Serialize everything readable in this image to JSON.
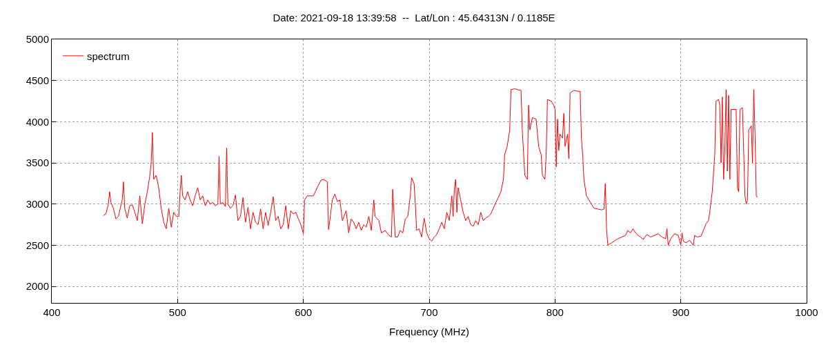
{
  "chart_data": {
    "type": "line",
    "title": "Date: 2021-09-18 13:39:58  --  Lat/Lon : 45.64313N / 0.1185E",
    "xlabel": "Frequency (MHz)",
    "xlim": [
      400,
      1000
    ],
    "xticks": [
      400,
      500,
      600,
      700,
      800,
      900,
      1000
    ],
    "ylim": [
      1800,
      5000
    ],
    "yticks": [
      2000,
      2500,
      3000,
      3500,
      4000,
      4500,
      5000
    ],
    "grid": true,
    "legend": "top left",
    "line_style": "solid",
    "marker": "none",
    "x": [
      441,
      443,
      445,
      446,
      447,
      449,
      451,
      453,
      456,
      457,
      458,
      460,
      462,
      464,
      466,
      468,
      470,
      472,
      474,
      476,
      478,
      479,
      480,
      481,
      483,
      485,
      487,
      489,
      491,
      493,
      495,
      497,
      499,
      501,
      502,
      503,
      504,
      506,
      508,
      510,
      512,
      514,
      516,
      518,
      520,
      522,
      524,
      526,
      528,
      530,
      532,
      533,
      534,
      536,
      538,
      539,
      540,
      542,
      544,
      546,
      548,
      550,
      552,
      554,
      556,
      558,
      560,
      562,
      564,
      566,
      568,
      570,
      572,
      574,
      576,
      578,
      580,
      582,
      584,
      586,
      588,
      590,
      592,
      594,
      596,
      598,
      600,
      601,
      603,
      606,
      608,
      611,
      614,
      616,
      619,
      620,
      621,
      623,
      625,
      627,
      629,
      631,
      634,
      636,
      638,
      640,
      642,
      644,
      646,
      648,
      650,
      652,
      654,
      656,
      657,
      660,
      662,
      665,
      668,
      670,
      671,
      673,
      675,
      677,
      679,
      681,
      683,
      685,
      686,
      688,
      689,
      690,
      692,
      694,
      696,
      698,
      700,
      702,
      704,
      706,
      708,
      710,
      712,
      714,
      716,
      718,
      719,
      720,
      721,
      722,
      723,
      725,
      727,
      729,
      731,
      733,
      735,
      737,
      739,
      741,
      743,
      745,
      747,
      749,
      751,
      753,
      755,
      757,
      759,
      760,
      762,
      764,
      765,
      768,
      770,
      773,
      774,
      776,
      778,
      779,
      780,
      782,
      785,
      787,
      789,
      790,
      792,
      793,
      794,
      797,
      799,
      800,
      801,
      802,
      803,
      804,
      806,
      807,
      808,
      810,
      811,
      812,
      815,
      818,
      820,
      821,
      822,
      823,
      825,
      827,
      829,
      831,
      834,
      837,
      839,
      840,
      841,
      842,
      845,
      848,
      850,
      853,
      856,
      858,
      860,
      862,
      864,
      866,
      868,
      870,
      873,
      876,
      879,
      882,
      885,
      888,
      889,
      890,
      892,
      895,
      898,
      899,
      900,
      901,
      902,
      904,
      907,
      909,
      910,
      911,
      913,
      916,
      918,
      920,
      922,
      923,
      925,
      927,
      928,
      930,
      931,
      932,
      933,
      934,
      935,
      936,
      937,
      938,
      939,
      940,
      942,
      944,
      945,
      946,
      947,
      949,
      951,
      952,
      953,
      954,
      956,
      957,
      958,
      959,
      960,
      961
    ],
    "series": [
      {
        "name": "spectrum",
        "color": "#ff0000",
        "values": [
          2860,
          2880,
          3000,
          3150,
          3020,
          2950,
          2820,
          2850,
          3050,
          3270,
          2950,
          2830,
          2980,
          2990,
          2900,
          2800,
          3100,
          2760,
          3000,
          3150,
          3350,
          3500,
          3870,
          3300,
          3350,
          3200,
          2950,
          2780,
          2700,
          2950,
          2720,
          2900,
          2850,
          2850,
          3150,
          3350,
          3100,
          3050,
          3150,
          3050,
          2980,
          3100,
          3200,
          3050,
          3100,
          2980,
          3050,
          3000,
          3020,
          2980,
          3000,
          3580,
          3000,
          3020,
          2970,
          3680,
          3000,
          2950,
          2980,
          3110,
          2800,
          2850,
          3080,
          2780,
          2960,
          2700,
          2900,
          2780,
          2750,
          2940,
          2700,
          2900,
          2740,
          2900,
          3090,
          2800,
          2850,
          2700,
          2750,
          2980,
          2700,
          2920,
          2880,
          2900,
          2820,
          2750,
          2640,
          3050,
          3100,
          3100,
          3100,
          3200,
          3290,
          3300,
          3270,
          2690,
          2800,
          3050,
          3120,
          3030,
          3050,
          2800,
          2920,
          2650,
          2820,
          2780,
          2700,
          2780,
          2680,
          2750,
          2720,
          2850,
          2680,
          3050,
          2850,
          2800,
          2650,
          2680,
          2620,
          2600,
          3180,
          2600,
          2600,
          2680,
          2650,
          2820,
          2850,
          3100,
          3320,
          3250,
          3000,
          2680,
          2700,
          2600,
          2830,
          2650,
          2580,
          2550,
          2600,
          2630,
          2700,
          2780,
          2700,
          2900,
          2800,
          3100,
          2850,
          3180,
          3300,
          2900,
          3200,
          3050,
          2900,
          2800,
          2850,
          2750,
          2730,
          2800,
          2750,
          2900,
          2800,
          2830,
          2850,
          2880,
          2950,
          3020,
          3080,
          3150,
          3300,
          3600,
          3700,
          3900,
          4390,
          4400,
          4390,
          4380,
          3900,
          3350,
          3300,
          4200,
          3900,
          4050,
          4030,
          3700,
          3600,
          3350,
          3300,
          3600,
          4270,
          4250,
          4200,
          4150,
          3450,
          4030,
          3650,
          3850,
          3800,
          4100,
          3700,
          3850,
          3550,
          4350,
          4380,
          4370,
          4370,
          3800,
          3600,
          3300,
          3100,
          3050,
          3000,
          2950,
          2940,
          2930,
          2940,
          3250,
          2700,
          2500,
          2530,
          2560,
          2580,
          2600,
          2620,
          2680,
          2650,
          2700,
          2650,
          2620,
          2600,
          2570,
          2630,
          2600,
          2620,
          2640,
          2600,
          2580,
          2700,
          2500,
          2580,
          2640,
          2620,
          2560,
          2500,
          2650,
          2550,
          2530,
          2560,
          2520,
          2500,
          2620,
          2600,
          2610,
          2680,
          2760,
          2800,
          2900,
          3150,
          3600,
          4250,
          4270,
          4200,
          3500,
          4300,
          3300,
          3650,
          4390,
          3400,
          4320,
          3300,
          4150,
          4150,
          4150,
          3200,
          3150,
          4150,
          4170,
          3100,
          3000,
          3050,
          3900,
          3950,
          3500,
          4390,
          3850,
          3100,
          3080
        ]
      }
    ]
  }
}
